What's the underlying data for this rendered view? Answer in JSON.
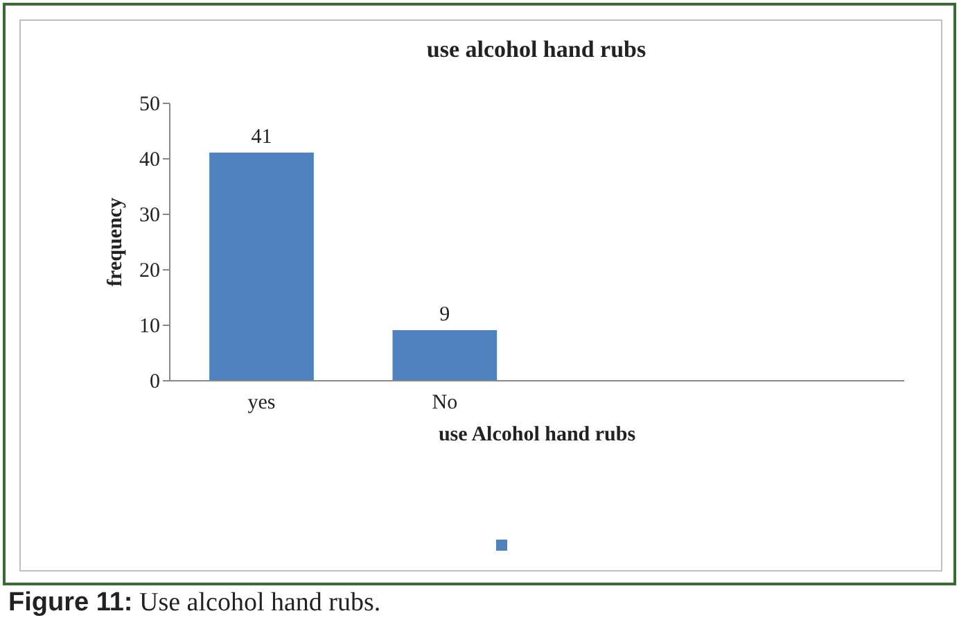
{
  "chart_data": {
    "type": "bar",
    "title": "use alcohol hand rubs",
    "xlabel": "use Alcohol hand rubs",
    "ylabel": "frequency",
    "categories": [
      "yes",
      "No",
      null,
      null
    ],
    "series": [
      {
        "color": "#4f81bd",
        "values": [
          41,
          9,
          null,
          null
        ]
      }
    ],
    "ylim": [
      0,
      50
    ],
    "yticks": [
      0,
      10,
      20,
      30,
      40,
      50
    ],
    "grid": false,
    "data_labels": true,
    "annotations": [
      "Figure 11: Use alcohol hand rubs."
    ]
  }
}
